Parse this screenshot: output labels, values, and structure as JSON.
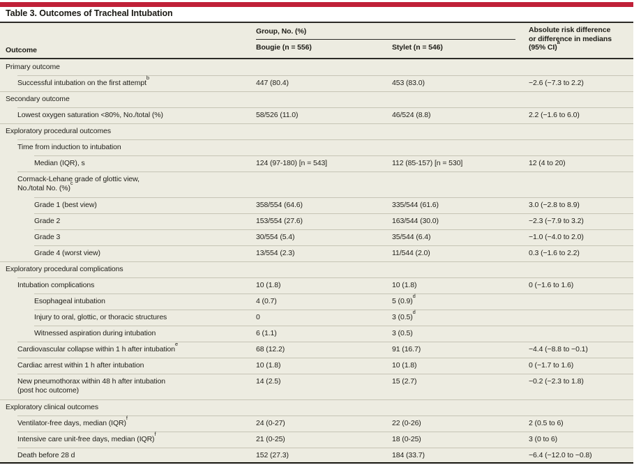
{
  "title": "Table 3. Outcomes of Tracheal Intubation",
  "colors": {
    "accent_red": "#C02038",
    "table_background": "#EDECE1",
    "rule_dark": "#2B2A26",
    "rule_light": "#C6C4B5",
    "text": "#1F1E19"
  },
  "header": {
    "outcome": "Outcome",
    "group": "Group, No. (%)",
    "bougie": "Bougie (n = 556)",
    "stylet": "Stylet (n = 546)",
    "diff_line1": "Absolute risk difference",
    "diff_line2": "or difference in medians",
    "diff_line3": "(95% CI)",
    "diff_sup": "a"
  },
  "rows": [
    {
      "type": "section",
      "label": "Primary outcome"
    },
    {
      "type": "data",
      "indent": 1,
      "label": "Successful intubation on the first attempt",
      "sup": "b",
      "bougie": "447 (80.4)",
      "stylet": "453 (83.0)",
      "diff": "−2.6 (−7.3 to 2.2)"
    },
    {
      "type": "section",
      "label": "Secondary outcome"
    },
    {
      "type": "data",
      "indent": 1,
      "label": "Lowest oxygen saturation <80%, No./total (%)",
      "bougie": "58/526 (11.0)",
      "stylet": "46/524 (8.8)",
      "diff": "2.2 (−1.6 to 6.0)"
    },
    {
      "type": "section",
      "label": "Exploratory procedural outcomes"
    },
    {
      "type": "data",
      "indent": 1,
      "label": "Time from induction to intubation",
      "bougie": "",
      "stylet": "",
      "diff": ""
    },
    {
      "type": "data",
      "indent": 2,
      "label": "Median (IQR), s",
      "bougie": "124 (97-180) [n = 543]",
      "stylet": "112 (85-157) [n = 530]",
      "diff": "12 (4 to 20)"
    },
    {
      "type": "data",
      "indent": 1,
      "label": "Cormack-Lehane grade of glottic view,\nNo./total No. (%)",
      "sup": "c",
      "bougie": "",
      "stylet": "",
      "diff": ""
    },
    {
      "type": "data",
      "indent": 2,
      "label": "Grade 1 (best view)",
      "bougie": "358/554 (64.6)",
      "stylet": "335/544 (61.6)",
      "diff": "3.0 (−2.8 to 8.9)"
    },
    {
      "type": "data",
      "indent": 2,
      "label": "Grade 2",
      "bougie": "153/554 (27.6)",
      "stylet": "163/544 (30.0)",
      "diff": "−2.3 (−7.9 to 3.2)"
    },
    {
      "type": "data",
      "indent": 2,
      "label": "Grade 3",
      "bougie": "30/554 (5.4)",
      "stylet": "35/544 (6.4)",
      "diff": "−1.0 (−4.0 to 2.0)"
    },
    {
      "type": "data",
      "indent": 2,
      "label": "Grade 4 (worst view)",
      "bougie": "13/554 (2.3)",
      "stylet": "11/544 (2.0)",
      "diff": "0.3 (−1.6 to 2.2)"
    },
    {
      "type": "section",
      "label": "Exploratory procedural complications"
    },
    {
      "type": "data",
      "indent": 1,
      "label": "Intubation complications",
      "bougie": "10 (1.8)",
      "stylet": "10 (1.8)",
      "diff": "0 (−1.6 to 1.6)"
    },
    {
      "type": "data",
      "indent": 2,
      "label": "Esophageal intubation",
      "bougie": "4 (0.7)",
      "stylet": "5 (0.9)",
      "stylet_sup": "d",
      "diff": ""
    },
    {
      "type": "data",
      "indent": 2,
      "label": "Injury to oral, glottic, or thoracic structures",
      "bougie": "0",
      "stylet": "3 (0.5)",
      "stylet_sup": "d",
      "diff": ""
    },
    {
      "type": "data",
      "indent": 2,
      "label": "Witnessed aspiration during intubation",
      "bougie": "6 (1.1)",
      "stylet": "3 (0.5)",
      "diff": ""
    },
    {
      "type": "data",
      "indent": 1,
      "label": "Cardiovascular collapse within 1 h after intubation",
      "sup": "e",
      "bougie": "68 (12.2)",
      "stylet": "91 (16.7)",
      "diff": "−4.4 (−8.8 to −0.1)"
    },
    {
      "type": "data",
      "indent": 1,
      "label": "Cardiac arrest within 1 h after intubation",
      "bougie": "10 (1.8)",
      "stylet": "10 (1.8)",
      "diff": "0 (−1.7 to 1.6)"
    },
    {
      "type": "data",
      "indent": 1,
      "label": "New pneumothorax within 48 h after intubation\n(post hoc outcome)",
      "bougie": "14 (2.5)",
      "stylet": "15 (2.7)",
      "diff": "−0.2 (−2.3 to 1.8)"
    },
    {
      "type": "section",
      "label": "Exploratory clinical outcomes"
    },
    {
      "type": "data",
      "indent": 1,
      "label": "Ventilator-free days, median (IQR)",
      "sup": "f",
      "bougie": "24 (0-27)",
      "stylet": "22 (0-26)",
      "diff": "2 (0.5 to 6)"
    },
    {
      "type": "data",
      "indent": 1,
      "label": "Intensive care unit-free days, median (IQR)",
      "sup": "f",
      "bougie": "21 (0-25)",
      "stylet": "18 (0-25)",
      "diff": "3 (0 to 6)"
    },
    {
      "type": "data",
      "indent": 1,
      "label": "Death before 28 d",
      "bougie": "152 (27.3)",
      "stylet": "184 (33.7)",
      "diff": "−6.4 (−12.0 to −0.8)"
    }
  ]
}
